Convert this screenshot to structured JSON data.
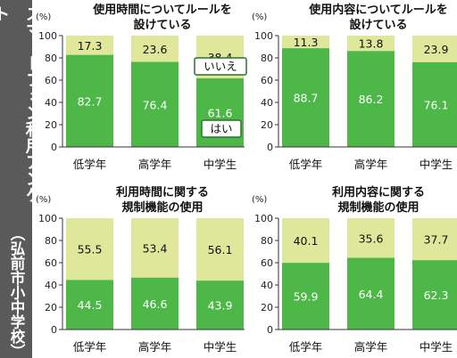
{
  "survey_title": "スマートフォン利用アンケート",
  "survey_source": "（弘前市小中学校）",
  "colors": {
    "yes": "#4db848",
    "no": "#dfe89a",
    "sidebar": "#5a5a5a",
    "label_box_border": "#2f6f2f"
  },
  "legend": {
    "no_label": "いいえ",
    "yes_label": "はい"
  },
  "chart_data": [
    {
      "type": "bar",
      "title_lines": [
        "使用時間についてルールを",
        "設けている"
      ],
      "unit": "(%)",
      "yticks": [
        0,
        20,
        40,
        60,
        80,
        100
      ],
      "ylim": [
        0,
        100
      ],
      "categories": [
        "低学年",
        "高学年",
        "中学生"
      ],
      "series": [
        {
          "name": "はい",
          "values": [
            82.7,
            76.4,
            61.6
          ]
        },
        {
          "name": "いいえ",
          "values": [
            17.3,
            23.6,
            38.4
          ]
        }
      ],
      "stacked": true,
      "legend_labels_shown": true
    },
    {
      "type": "bar",
      "title_lines": [
        "使用内容についてルールを",
        "設けている"
      ],
      "unit": "(%)",
      "yticks": [
        0,
        20,
        40,
        60,
        80,
        100
      ],
      "ylim": [
        0,
        100
      ],
      "categories": [
        "低学年",
        "高学年",
        "中学生"
      ],
      "series": [
        {
          "name": "はい",
          "values": [
            88.7,
            86.2,
            76.1
          ]
        },
        {
          "name": "いいえ",
          "values": [
            11.3,
            13.8,
            23.9
          ]
        }
      ],
      "stacked": true,
      "legend_labels_shown": false
    },
    {
      "type": "bar",
      "title_lines": [
        "利用時間に関する",
        "規制機能の使用"
      ],
      "unit": "(%)",
      "yticks": [
        0,
        20,
        40,
        60,
        80,
        100
      ],
      "ylim": [
        0,
        100
      ],
      "categories": [
        "低学年",
        "高学年",
        "中学生"
      ],
      "series": [
        {
          "name": "はい",
          "values": [
            44.5,
            46.6,
            43.9
          ]
        },
        {
          "name": "いいえ",
          "values": [
            55.5,
            53.4,
            56.1
          ]
        }
      ],
      "stacked": true,
      "legend_labels_shown": false
    },
    {
      "type": "bar",
      "title_lines": [
        "利用内容に関する",
        "規制機能の使用"
      ],
      "unit": "(%)",
      "yticks": [
        0,
        20,
        40,
        60,
        80,
        100
      ],
      "ylim": [
        0,
        100
      ],
      "categories": [
        "低学年",
        "高学年",
        "中学生"
      ],
      "series": [
        {
          "name": "はい",
          "values": [
            59.9,
            64.4,
            62.3
          ]
        },
        {
          "name": "いいえ",
          "values": [
            40.1,
            35.6,
            37.7
          ]
        }
      ],
      "stacked": true,
      "legend_labels_shown": false
    }
  ]
}
